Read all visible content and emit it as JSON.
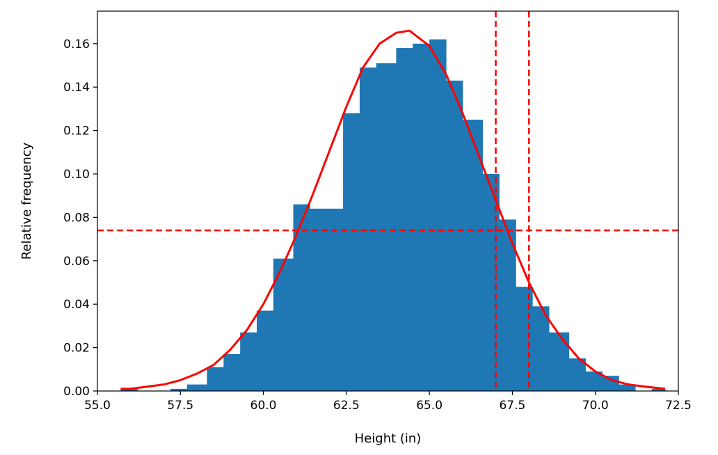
{
  "chart_data": {
    "type": "bar",
    "title": "",
    "xlabel": "Height (in)",
    "ylabel": "Relative frequency",
    "xlim": [
      55.0,
      72.5
    ],
    "ylim": [
      0.0,
      0.175
    ],
    "x_ticks": [
      55.0,
      57.5,
      60.0,
      62.5,
      65.0,
      67.5,
      70.0,
      72.5
    ],
    "x_tick_labels": [
      "55.0",
      "57.5",
      "60.0",
      "62.5",
      "65.0",
      "67.5",
      "70.0",
      "72.5"
    ],
    "y_ticks": [
      0.0,
      0.02,
      0.04,
      0.06,
      0.08,
      0.1,
      0.12,
      0.14,
      0.16
    ],
    "y_tick_labels": [
      "0.00",
      "0.02",
      "0.04",
      "0.06",
      "0.08",
      "0.10",
      "0.12",
      "0.14",
      "0.16"
    ],
    "grid": false,
    "histogram": {
      "color": "#1f77b4",
      "bins": [
        {
          "x0": 55.7,
          "x1": 56.2,
          "value": 0.001
        },
        {
          "x0": 56.2,
          "x1": 56.7,
          "value": 0.0
        },
        {
          "x0": 56.7,
          "x1": 57.2,
          "value": 0.0
        },
        {
          "x0": 57.2,
          "x1": 57.7,
          "value": 0.001
        },
        {
          "x0": 57.7,
          "x1": 58.3,
          "value": 0.003
        },
        {
          "x0": 58.3,
          "x1": 58.8,
          "value": 0.011
        },
        {
          "x0": 58.8,
          "x1": 59.3,
          "value": 0.017
        },
        {
          "x0": 59.3,
          "x1": 59.8,
          "value": 0.027
        },
        {
          "x0": 59.8,
          "x1": 60.3,
          "value": 0.037
        },
        {
          "x0": 60.3,
          "x1": 60.9,
          "value": 0.061
        },
        {
          "x0": 60.9,
          "x1": 61.4,
          "value": 0.086
        },
        {
          "x0": 61.4,
          "x1": 61.9,
          "value": 0.084
        },
        {
          "x0": 61.9,
          "x1": 62.4,
          "value": 0.084
        },
        {
          "x0": 62.4,
          "x1": 62.9,
          "value": 0.128
        },
        {
          "x0": 62.9,
          "x1": 63.4,
          "value": 0.149
        },
        {
          "x0": 63.4,
          "x1": 64.0,
          "value": 0.151
        },
        {
          "x0": 64.0,
          "x1": 64.5,
          "value": 0.158
        },
        {
          "x0": 64.5,
          "x1": 65.0,
          "value": 0.16
        },
        {
          "x0": 65.0,
          "x1": 65.5,
          "value": 0.162
        },
        {
          "x0": 65.5,
          "x1": 66.0,
          "value": 0.143
        },
        {
          "x0": 66.0,
          "x1": 66.6,
          "value": 0.125
        },
        {
          "x0": 66.6,
          "x1": 67.1,
          "value": 0.1
        },
        {
          "x0": 67.1,
          "x1": 67.6,
          "value": 0.079
        },
        {
          "x0": 67.6,
          "x1": 68.1,
          "value": 0.048
        },
        {
          "x0": 68.1,
          "x1": 68.6,
          "value": 0.039
        },
        {
          "x0": 68.6,
          "x1": 69.2,
          "value": 0.027
        },
        {
          "x0": 69.2,
          "x1": 69.7,
          "value": 0.015
        },
        {
          "x0": 69.7,
          "x1": 70.2,
          "value": 0.009
        },
        {
          "x0": 70.2,
          "x1": 70.7,
          "value": 0.007
        },
        {
          "x0": 70.7,
          "x1": 71.2,
          "value": 0.003
        },
        {
          "x0": 71.2,
          "x1": 71.7,
          "value": 0.0
        },
        {
          "x0": 71.7,
          "x1": 72.1,
          "value": 0.001
        }
      ]
    },
    "curve": {
      "color": "#ff0000",
      "x": [
        55.7,
        56.0,
        56.5,
        57.0,
        57.5,
        58.0,
        58.5,
        59.0,
        59.5,
        60.0,
        60.5,
        61.0,
        61.5,
        62.0,
        62.5,
        63.0,
        63.5,
        64.0,
        64.4,
        65.0,
        65.5,
        66.0,
        66.5,
        67.0,
        67.5,
        68.0,
        68.5,
        69.0,
        69.5,
        70.0,
        70.5,
        71.0,
        71.5,
        72.1
      ],
      "y": [
        0.001,
        0.001,
        0.002,
        0.003,
        0.005,
        0.008,
        0.012,
        0.019,
        0.028,
        0.04,
        0.055,
        0.072,
        0.091,
        0.111,
        0.131,
        0.149,
        0.16,
        0.165,
        0.166,
        0.159,
        0.146,
        0.128,
        0.108,
        0.088,
        0.068,
        0.05,
        0.035,
        0.024,
        0.015,
        0.009,
        0.005,
        0.003,
        0.002,
        0.001
      ]
    },
    "reference_lines": {
      "color": "#ff0000",
      "style": "dashed",
      "vertical_x": [
        67.0,
        68.0
      ],
      "horizontal_y": [
        0.074
      ]
    }
  }
}
